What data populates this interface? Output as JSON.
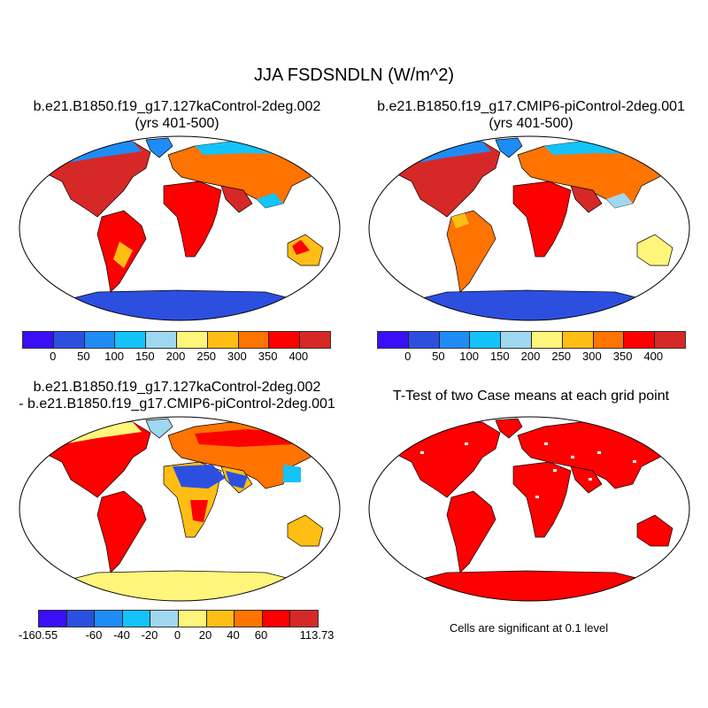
{
  "title": "JJA FSDSNDLN (W/m^2)",
  "panels": [
    {
      "title_line1": "b.e21.B1850.f19_g17.127kaControl-2deg.002",
      "title_line2": "(yrs 401-500)"
    },
    {
      "title_line1": "b.e21.B1850.f19_g17.CMIP6-piControl-2deg.001",
      "title_line2": "(yrs 401-500)"
    },
    {
      "title_line1": "b.e21.B1850.f19_g17.127kaControl-2deg.002",
      "title_line2": "- b.e21.B1850.f19_g17.CMIP6-piControl-2deg.001"
    },
    {
      "title_line1": "T-Test of two Case means at each grid point",
      "note": "Cells are significant at 0.1 level"
    }
  ],
  "colorbar_colors": [
    "#3a0ff5",
    "#2d4fe0",
    "#1e8cf5",
    "#14c3fa",
    "#a0d7f0",
    "#fff57a",
    "#ffbe14",
    "#ff7300",
    "#ff0000",
    "#d72828"
  ],
  "colorbar_abs_ticks": [
    "0",
    "50",
    "100",
    "150",
    "200",
    "250",
    "300",
    "350",
    "400"
  ],
  "colorbar_diff_ticks": [
    "-160.55",
    "-60",
    "-40",
    "-20",
    "0",
    "20",
    "40",
    "60",
    "113.73"
  ]
}
